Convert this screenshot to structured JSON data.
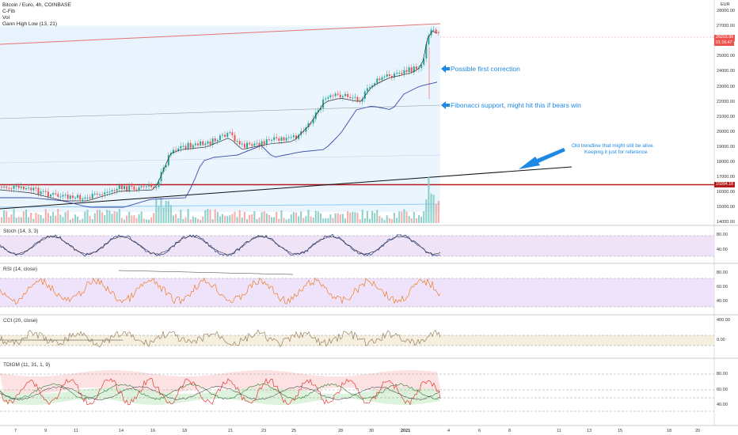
{
  "header": {
    "symbol": "Bitcoin / Euro, 4h, COINBASE",
    "line2": "C-Fib",
    "line3": "Vol",
    "line4": "Gann High Low (13, 21)"
  },
  "price_axis": {
    "currency": "EUR",
    "ticks": [
      "28000.00",
      "27000.00",
      "26000.00",
      "25000.00",
      "24000.00",
      "23000.00",
      "22000.00",
      "21000.00",
      "20000.00",
      "19000.00",
      "18000.00",
      "17000.00",
      "16000.00",
      "15000.00",
      "14000.00"
    ],
    "last_price": "26203.99",
    "countdown": "01:16:47",
    "level_badge": "15994.18"
  },
  "annotations": {
    "first_correction": "Possible first correction",
    "fib_support": "Fibonacci support, might hit this if bears win",
    "trendline_note_1": "Old trendline that might still be alive.",
    "trendline_note_2": "Keeping it just for reference."
  },
  "panes": {
    "stoch": {
      "label": "Stoch (14, 3, 3)",
      "ticks": [
        "80.00",
        "40.00"
      ]
    },
    "rsi": {
      "label": "RSI (14, close)",
      "ticks": [
        "80.00",
        "60.00",
        "40.00"
      ]
    },
    "cci": {
      "label": "CCI (20, close)",
      "ticks": [
        "400.00",
        "0.00"
      ]
    },
    "tdigm": {
      "label": "TDIGM (11, 31, 1, 9)",
      "ticks": [
        "80.00",
        "60.00",
        "40.00"
      ]
    }
  },
  "x_axis": {
    "labels": [
      "7",
      "9",
      "11",
      "14",
      "16",
      "18",
      "21",
      "23",
      "25",
      "28",
      "30",
      "2021",
      "4",
      "6",
      "8",
      "11",
      "13",
      "15",
      "18",
      "20"
    ]
  },
  "colors": {
    "up": "#26a69a",
    "down": "#ef5350",
    "fib_fill": "#e3f2fd",
    "annotation": "#1e88e5",
    "level_line": "#b71c1c",
    "ma_line": "#3949ab",
    "purple_band": "#efe3f7"
  }
}
